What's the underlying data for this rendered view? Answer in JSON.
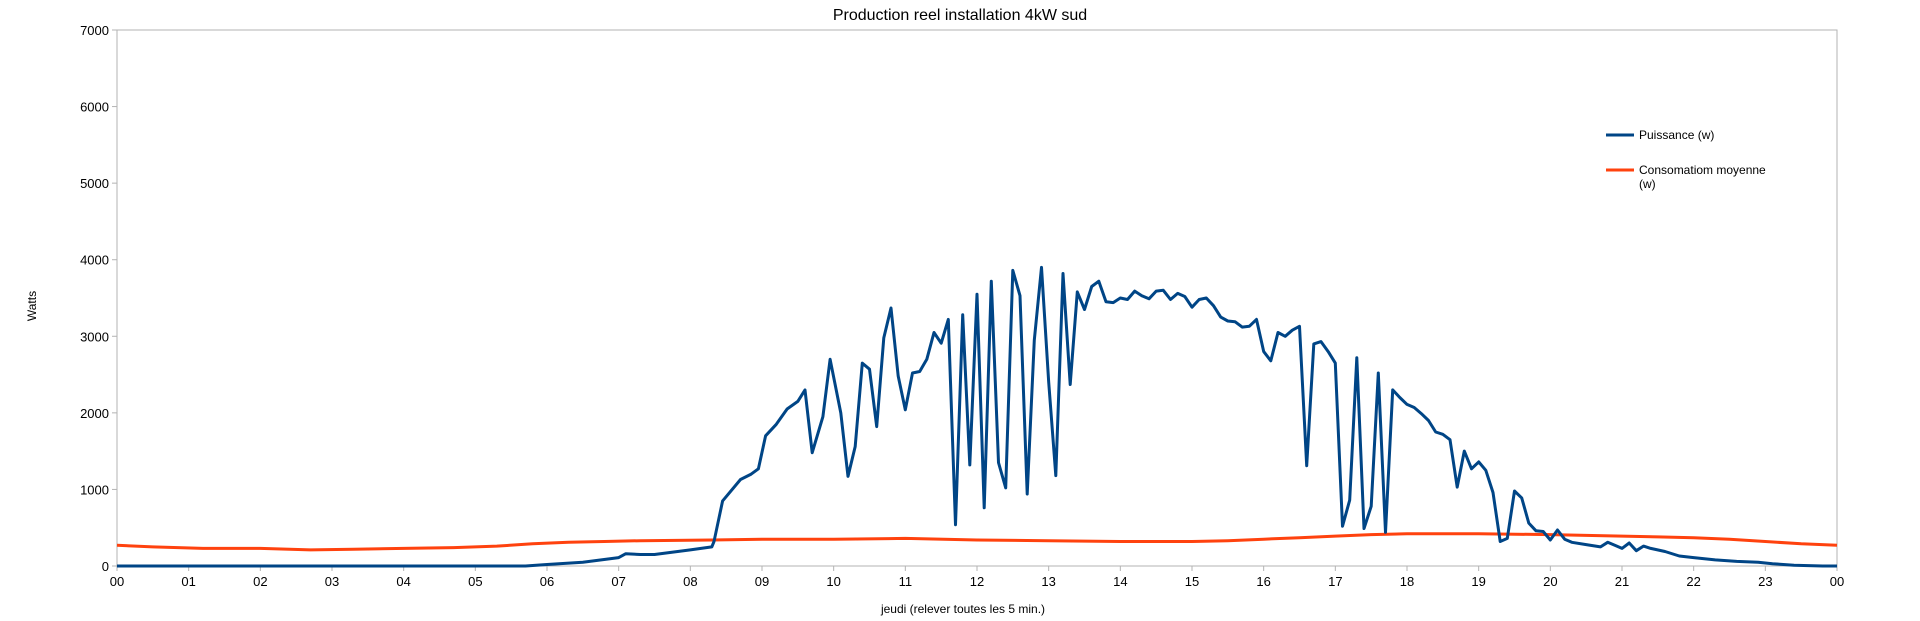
{
  "chart_data": {
    "type": "line",
    "title": "Production  reel installation 4kW sud",
    "xlabel": "jeudi (relever toutes les 5 min.)",
    "ylabel": "Watts",
    "ylim": [
      0,
      7000
    ],
    "yticks": [
      0,
      1000,
      2000,
      3000,
      4000,
      5000,
      6000,
      7000
    ],
    "xlim": [
      0,
      24
    ],
    "xtick_labels": [
      "00",
      "01",
      "02",
      "03",
      "04",
      "05",
      "06",
      "07",
      "08",
      "09",
      "10",
      "11",
      "12",
      "13",
      "14",
      "15",
      "16",
      "17",
      "18",
      "19",
      "20",
      "21",
      "22",
      "23",
      "00"
    ],
    "grid": false,
    "legend_position": "right",
    "series": [
      {
        "name": "Puissance (w)",
        "color": "#004586",
        "points": [
          [
            0.0,
            0
          ],
          [
            5.7,
            0
          ],
          [
            6.0,
            20
          ],
          [
            6.5,
            50
          ],
          [
            7.0,
            110
          ],
          [
            7.1,
            160
          ],
          [
            7.3,
            150
          ],
          [
            7.5,
            150
          ],
          [
            8.0,
            210
          ],
          [
            8.3,
            250
          ],
          [
            8.33,
            320
          ],
          [
            8.45,
            850
          ],
          [
            8.7,
            1130
          ],
          [
            8.85,
            1200
          ],
          [
            8.95,
            1270
          ],
          [
            9.05,
            1700
          ],
          [
            9.2,
            1850
          ],
          [
            9.35,
            2050
          ],
          [
            9.5,
            2150
          ],
          [
            9.6,
            2300
          ],
          [
            9.7,
            1480
          ],
          [
            9.85,
            1950
          ],
          [
            9.95,
            2700
          ],
          [
            10.1,
            2000
          ],
          [
            10.2,
            1170
          ],
          [
            10.3,
            1560
          ],
          [
            10.4,
            2650
          ],
          [
            10.5,
            2570
          ],
          [
            10.6,
            1820
          ],
          [
            10.7,
            2980
          ],
          [
            10.8,
            3370
          ],
          [
            10.9,
            2480
          ],
          [
            11.0,
            2040
          ],
          [
            11.1,
            2520
          ],
          [
            11.2,
            2540
          ],
          [
            11.3,
            2700
          ],
          [
            11.4,
            3050
          ],
          [
            11.5,
            2910
          ],
          [
            11.6,
            3220
          ],
          [
            11.7,
            540
          ],
          [
            11.8,
            3280
          ],
          [
            11.9,
            1320
          ],
          [
            12.0,
            3550
          ],
          [
            12.1,
            760
          ],
          [
            12.2,
            3720
          ],
          [
            12.3,
            1350
          ],
          [
            12.4,
            1020
          ],
          [
            12.5,
            3860
          ],
          [
            12.6,
            3530
          ],
          [
            12.7,
            940
          ],
          [
            12.8,
            2950
          ],
          [
            12.9,
            3900
          ],
          [
            13.0,
            2400
          ],
          [
            13.1,
            1180
          ],
          [
            13.2,
            3820
          ],
          [
            13.3,
            2370
          ],
          [
            13.4,
            3580
          ],
          [
            13.5,
            3350
          ],
          [
            13.6,
            3650
          ],
          [
            13.7,
            3720
          ],
          [
            13.8,
            3450
          ],
          [
            13.9,
            3440
          ],
          [
            14.0,
            3500
          ],
          [
            14.1,
            3480
          ],
          [
            14.2,
            3590
          ],
          [
            14.3,
            3530
          ],
          [
            14.4,
            3490
          ],
          [
            14.5,
            3590
          ],
          [
            14.6,
            3600
          ],
          [
            14.7,
            3480
          ],
          [
            14.8,
            3560
          ],
          [
            14.9,
            3520
          ],
          [
            15.0,
            3380
          ],
          [
            15.1,
            3480
          ],
          [
            15.2,
            3500
          ],
          [
            15.3,
            3400
          ],
          [
            15.4,
            3250
          ],
          [
            15.5,
            3200
          ],
          [
            15.6,
            3190
          ],
          [
            15.7,
            3120
          ],
          [
            15.8,
            3130
          ],
          [
            15.9,
            3220
          ],
          [
            16.0,
            2800
          ],
          [
            16.1,
            2680
          ],
          [
            16.2,
            3050
          ],
          [
            16.3,
            3000
          ],
          [
            16.4,
            3080
          ],
          [
            16.5,
            3130
          ],
          [
            16.6,
            1310
          ],
          [
            16.7,
            2900
          ],
          [
            16.8,
            2930
          ],
          [
            16.9,
            2800
          ],
          [
            17.0,
            2650
          ],
          [
            17.1,
            520
          ],
          [
            17.2,
            860
          ],
          [
            17.3,
            2720
          ],
          [
            17.4,
            490
          ],
          [
            17.5,
            780
          ],
          [
            17.6,
            2520
          ],
          [
            17.7,
            440
          ],
          [
            17.8,
            2300
          ],
          [
            17.9,
            2200
          ],
          [
            18.0,
            2110
          ],
          [
            18.1,
            2070
          ],
          [
            18.2,
            1990
          ],
          [
            18.3,
            1900
          ],
          [
            18.4,
            1750
          ],
          [
            18.5,
            1720
          ],
          [
            18.6,
            1650
          ],
          [
            18.7,
            1030
          ],
          [
            18.8,
            1500
          ],
          [
            18.9,
            1270
          ],
          [
            19.0,
            1360
          ],
          [
            19.1,
            1250
          ],
          [
            19.2,
            960
          ],
          [
            19.3,
            320
          ],
          [
            19.4,
            360
          ],
          [
            19.5,
            980
          ],
          [
            19.6,
            890
          ],
          [
            19.7,
            560
          ],
          [
            19.8,
            460
          ],
          [
            19.9,
            450
          ],
          [
            20.0,
            340
          ],
          [
            20.1,
            470
          ],
          [
            20.2,
            350
          ],
          [
            20.3,
            310
          ],
          [
            20.5,
            280
          ],
          [
            20.7,
            250
          ],
          [
            20.8,
            310
          ],
          [
            20.9,
            270
          ],
          [
            21.0,
            230
          ],
          [
            21.1,
            300
          ],
          [
            21.2,
            200
          ],
          [
            21.3,
            260
          ],
          [
            21.4,
            230
          ],
          [
            21.6,
            190
          ],
          [
            21.8,
            130
          ],
          [
            22.0,
            110
          ],
          [
            22.3,
            80
          ],
          [
            22.6,
            60
          ],
          [
            22.9,
            50
          ],
          [
            23.1,
            30
          ],
          [
            23.4,
            10
          ],
          [
            23.6,
            5
          ],
          [
            23.8,
            0
          ],
          [
            24.0,
            0
          ]
        ]
      },
      {
        "name": "Consomatiom moyenne (w)",
        "color": "#ff420e",
        "points": [
          [
            0.0,
            270
          ],
          [
            0.5,
            250
          ],
          [
            1.2,
            230
          ],
          [
            2.0,
            230
          ],
          [
            2.7,
            210
          ],
          [
            3.3,
            220
          ],
          [
            4.0,
            230
          ],
          [
            4.7,
            240
          ],
          [
            5.3,
            260
          ],
          [
            5.8,
            290
          ],
          [
            6.3,
            310
          ],
          [
            6.8,
            320
          ],
          [
            7.3,
            330
          ],
          [
            8.3,
            340
          ],
          [
            9.0,
            350
          ],
          [
            10.0,
            350
          ],
          [
            11.0,
            360
          ],
          [
            12.0,
            340
          ],
          [
            13.0,
            330
          ],
          [
            14.0,
            320
          ],
          [
            15.0,
            320
          ],
          [
            15.5,
            330
          ],
          [
            16.0,
            350
          ],
          [
            16.5,
            370
          ],
          [
            17.0,
            390
          ],
          [
            17.5,
            410
          ],
          [
            18.0,
            420
          ],
          [
            19.0,
            420
          ],
          [
            20.0,
            410
          ],
          [
            20.5,
            400
          ],
          [
            21.0,
            390
          ],
          [
            21.5,
            380
          ],
          [
            22.0,
            370
          ],
          [
            22.5,
            350
          ],
          [
            23.0,
            320
          ],
          [
            23.5,
            290
          ],
          [
            24.0,
            270
          ]
        ]
      }
    ]
  }
}
